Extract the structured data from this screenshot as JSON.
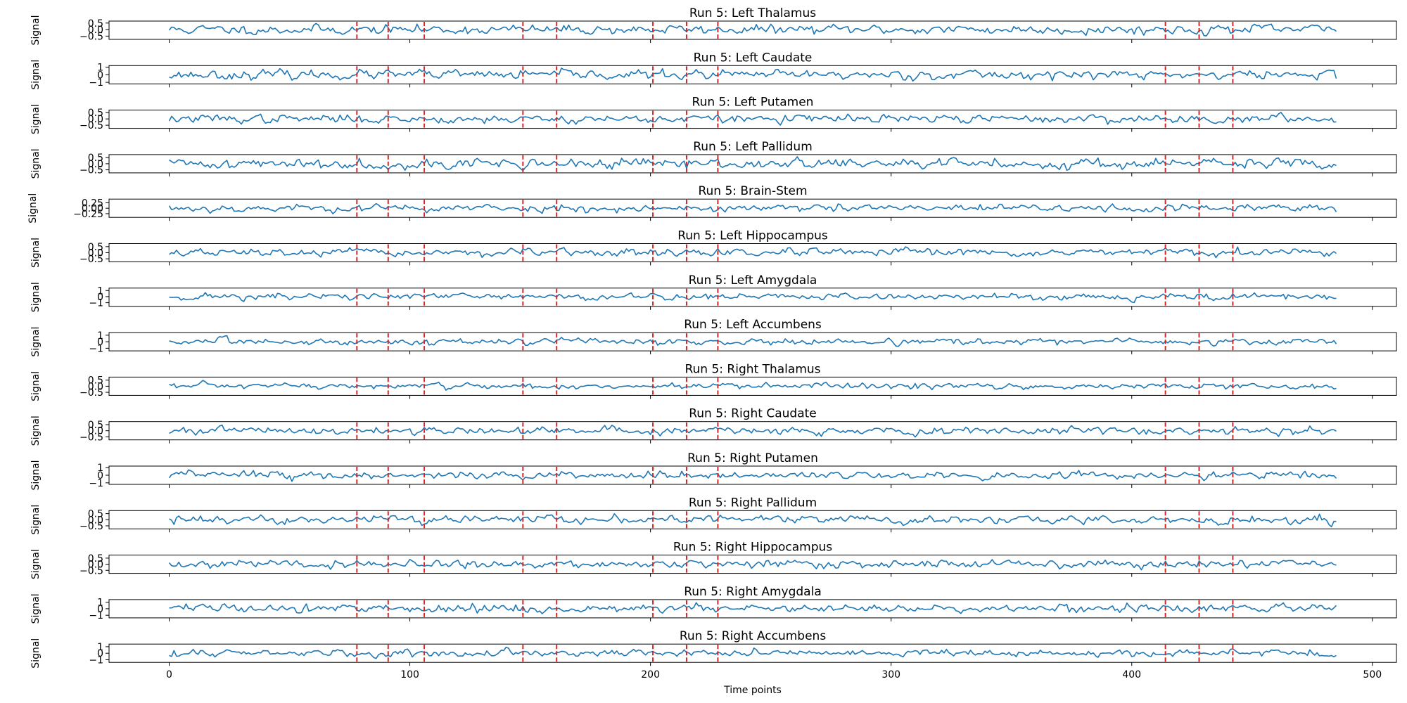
{
  "chart_data": {
    "type": "line",
    "n_points": 486,
    "xlabel": "Time points",
    "ylabel": "Signal",
    "x_range": [
      0,
      485
    ],
    "x_ticks": [
      0,
      100,
      200,
      300,
      400,
      500
    ],
    "x_tick_labels": [
      "0",
      "100",
      "200",
      "300",
      "400",
      "500"
    ],
    "event_markers": [
      78,
      91,
      106,
      147,
      161,
      201,
      215,
      228,
      414,
      428,
      442
    ],
    "series_color": "#1f77b4",
    "marker_color": "#d62728",
    "panels": [
      {
        "title": "Run 5: Left Thalamus",
        "ylim": [
          -0.75,
          0.65
        ],
        "yticks": [
          0.5,
          0.0,
          -0.5
        ],
        "ytick_labels": [
          "0.5",
          "0.0",
          "−0.5"
        ],
        "amp": 0.42,
        "seed": 11
      },
      {
        "title": "Run 5: Left Caudate",
        "ylim": [
          -1.2,
          1.2
        ],
        "yticks": [
          1,
          0,
          -1
        ],
        "ytick_labels": [
          "1",
          "0",
          "−1"
        ],
        "amp": 0.75,
        "seed": 23
      },
      {
        "title": "Run 5: Left Putamen",
        "ylim": [
          -0.75,
          0.7
        ],
        "yticks": [
          0.5,
          0.0,
          -0.5
        ],
        "ytick_labels": [
          "0.5",
          "0.0",
          "−0.5"
        ],
        "amp": 0.45,
        "seed": 37
      },
      {
        "title": "Run 5: Left Pallidum",
        "ylim": [
          -0.75,
          0.75
        ],
        "yticks": [
          0.5,
          0.0,
          -0.5
        ],
        "ytick_labels": [
          "0.5",
          "0.0",
          "−0.5"
        ],
        "amp": 0.5,
        "seed": 41
      },
      {
        "title": "Run 5: Brain-Stem",
        "ylim": [
          -0.42,
          0.42
        ],
        "yticks": [
          0.25,
          0.0,
          -0.25
        ],
        "ytick_labels": [
          "0.25",
          "0.00",
          "−0.25"
        ],
        "amp": 0.22,
        "seed": 53
      },
      {
        "title": "Run 5: Left Hippocampus",
        "ylim": [
          -0.75,
          0.75
        ],
        "yticks": [
          0.5,
          0.0,
          -0.5
        ],
        "ytick_labels": [
          "0.5",
          "0.0",
          "−0.5"
        ],
        "amp": 0.42,
        "seed": 67
      },
      {
        "title": "Run 5: Left Amygdala",
        "ylim": [
          -1.6,
          1.4
        ],
        "yticks": [
          1,
          0,
          -1
        ],
        "ytick_labels": [
          "1",
          "0",
          "−1"
        ],
        "amp": 0.85,
        "seed": 71
      },
      {
        "title": "Run 5: Left Accumbens",
        "ylim": [
          -1.4,
          1.4
        ],
        "yticks": [
          1,
          0,
          -1
        ],
        "ytick_labels": [
          "1",
          "0",
          "−1"
        ],
        "amp": 0.8,
        "seed": 83
      },
      {
        "title": "Run 5: Right Thalamus",
        "ylim": [
          -0.75,
          0.75
        ],
        "yticks": [
          0.5,
          0.0,
          -0.5
        ],
        "ytick_labels": [
          "0.5",
          "0.0",
          "−0.5"
        ],
        "amp": 0.42,
        "seed": 97
      },
      {
        "title": "Run 5: Right Caudate",
        "ylim": [
          -0.75,
          0.75
        ],
        "yticks": [
          0.5,
          0.0,
          -0.5
        ],
        "ytick_labels": [
          "0.5",
          "0.0",
          "−0.5"
        ],
        "amp": 0.45,
        "seed": 101
      },
      {
        "title": "Run 5: Right Putamen",
        "ylim": [
          -1.2,
          1.2
        ],
        "yticks": [
          1,
          0,
          -1
        ],
        "ytick_labels": [
          "1",
          "0",
          "−1"
        ],
        "amp": 0.7,
        "seed": 113
      },
      {
        "title": "Run 5: Right Pallidum",
        "ylim": [
          -0.75,
          0.75
        ],
        "yticks": [
          0.5,
          0.0,
          -0.5
        ],
        "ytick_labels": [
          "0.5",
          "0.0",
          "−0.5"
        ],
        "amp": 0.5,
        "seed": 127
      },
      {
        "title": "Run 5: Right Hippocampus",
        "ylim": [
          -0.75,
          0.75
        ],
        "yticks": [
          0.5,
          0.0,
          -0.5
        ],
        "ytick_labels": [
          "0.5",
          "0.0",
          "−0.5"
        ],
        "amp": 0.4,
        "seed": 131
      },
      {
        "title": "Run 5: Right Amygdala",
        "ylim": [
          -1.4,
          1.4
        ],
        "yticks": [
          1,
          0,
          -1
        ],
        "ytick_labels": [
          "1",
          "0",
          "−1"
        ],
        "amp": 0.8,
        "seed": 149
      },
      {
        "title": "Run 5: Right Accumbens",
        "ylim": [
          -1.4,
          1.4
        ],
        "yticks": [
          1,
          0,
          -1
        ],
        "ytick_labels": [
          "1",
          "0",
          "−1"
        ],
        "amp": 0.8,
        "seed": 157
      }
    ]
  }
}
